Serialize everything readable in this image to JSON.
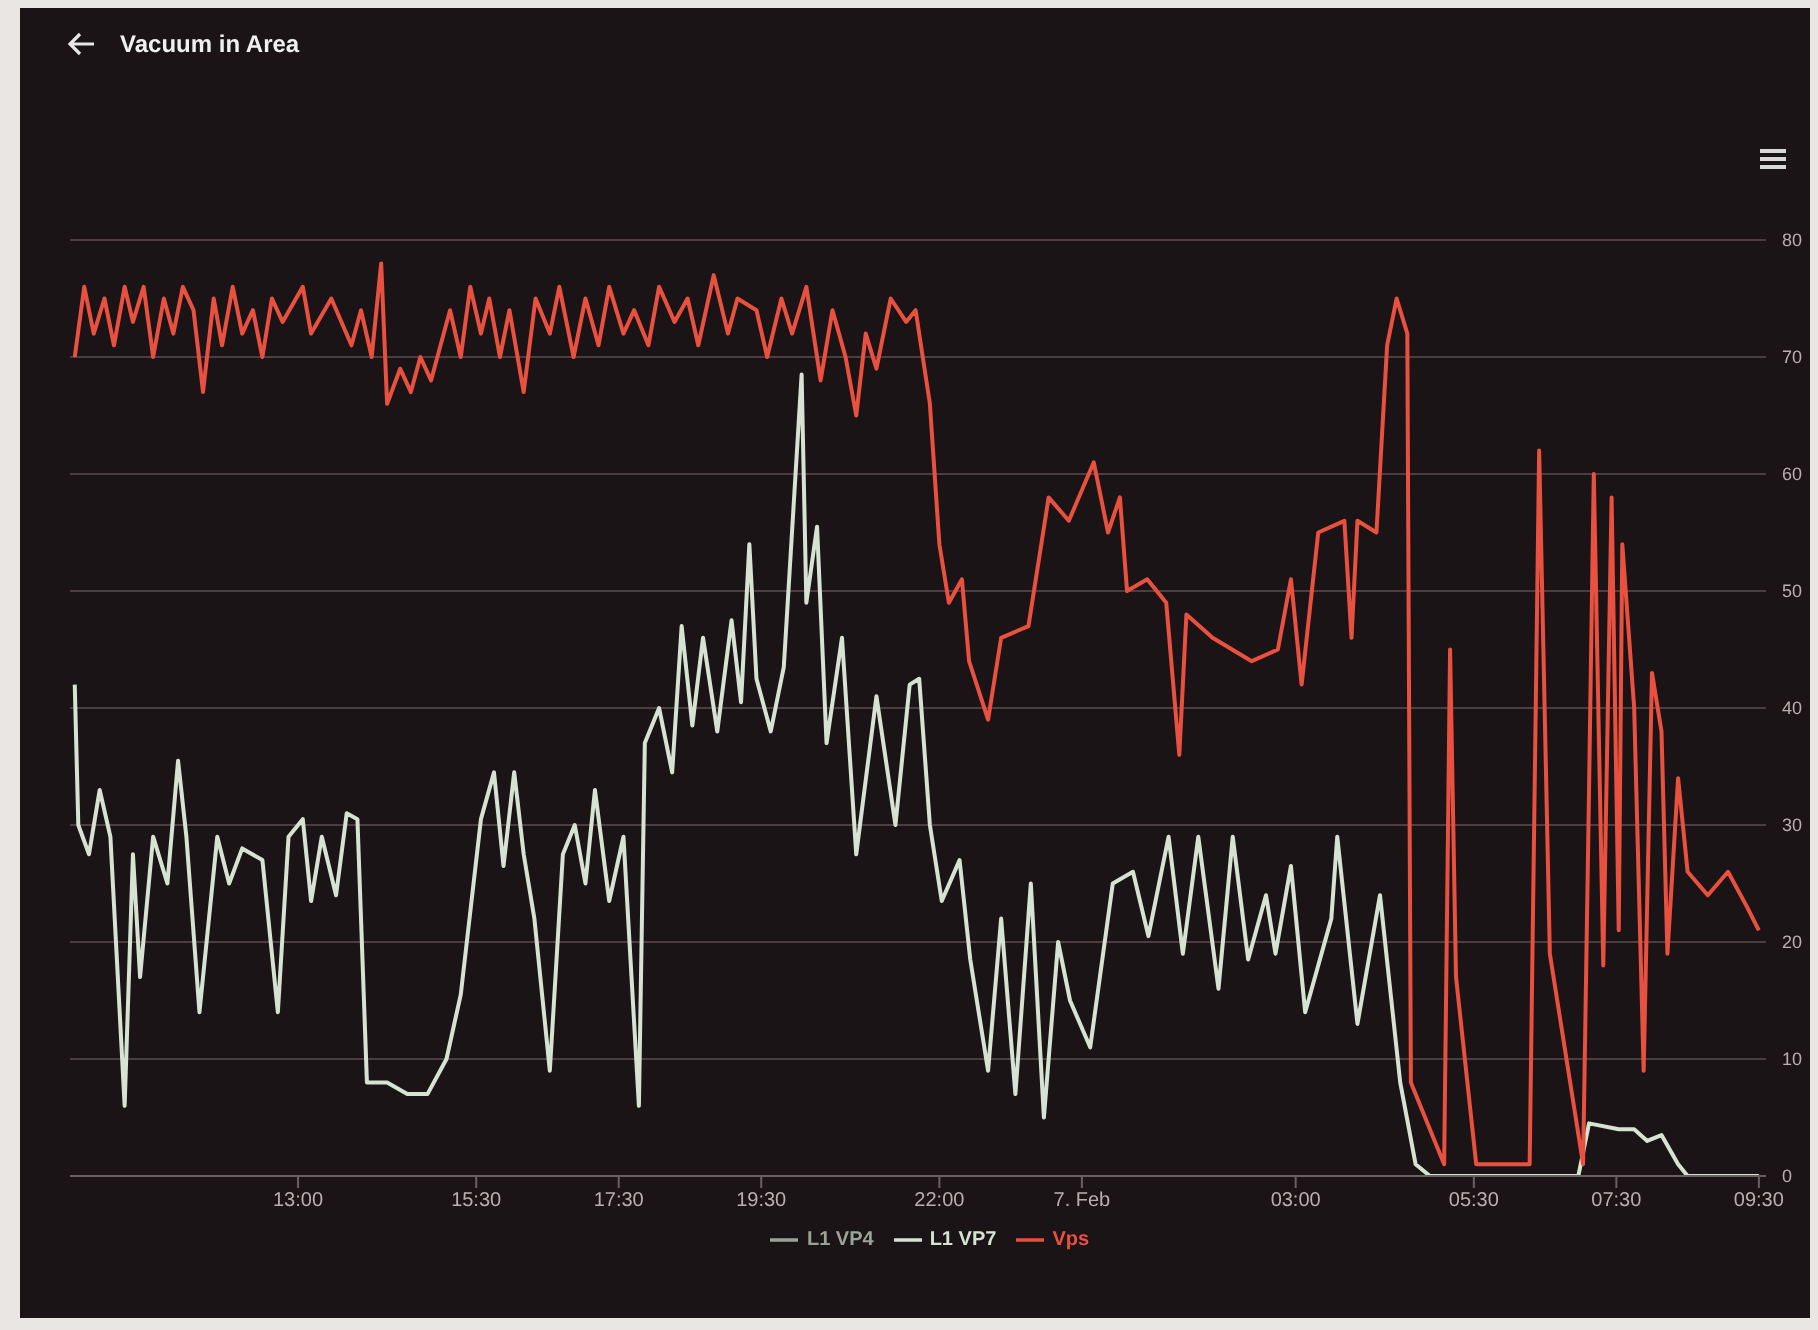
{
  "chart_data": {
    "type": "line",
    "title": "Vacuum in Area",
    "xlim": [
      "--02-06T09:48",
      "--02-07T09:36"
    ],
    "xticks": [
      {
        "value": "--02-06T13:00",
        "label": "13:00"
      },
      {
        "value": "--02-06T15:30",
        "label": "15:30"
      },
      {
        "value": "--02-06T17:30",
        "label": "17:30"
      },
      {
        "value": "--02-06T19:30",
        "label": "19:30"
      },
      {
        "value": "--02-06T22:00",
        "label": "22:00"
      },
      {
        "value": "--02-07T00:00",
        "label": "7. Feb"
      },
      {
        "value": "--02-07T03:00",
        "label": "03:00"
      },
      {
        "value": "--02-07T05:30",
        "label": "05:30"
      },
      {
        "value": "--02-07T07:30",
        "label": "07:30"
      },
      {
        "value": "--02-07T09:30",
        "label": "09:30"
      }
    ],
    "ylim": [
      0,
      80
    ],
    "yticks": [
      0,
      10,
      20,
      30,
      40,
      50,
      60,
      70,
      80
    ],
    "grid": "y",
    "legend": "bottom",
    "series": [
      {
        "name": "L1 VP4",
        "color": "#9aa39a"
      },
      {
        "name": "L1 VP7",
        "color": "#d6e3d3",
        "x": [
          "--02-06T09:52",
          "--02-06T09:55",
          "--02-06T10:04",
          "--02-06T10:13",
          "--02-06T10:22",
          "--02-06T10:34",
          "--02-06T10:41",
          "--02-06T10:47",
          "--02-06T10:58",
          "--02-06T11:10",
          "--02-06T11:19",
          "--02-06T11:26",
          "--02-06T11:37",
          "--02-06T11:52",
          "--02-06T12:02",
          "--02-06T12:13",
          "--02-06T12:30",
          "--02-06T12:43",
          "--02-06T12:52",
          "--02-06T13:04",
          "--02-06T13:11",
          "--02-06T13:20",
          "--02-06T13:32",
          "--02-06T13:41",
          "--02-06T13:50",
          "--02-06T13:58",
          "--02-06T14:15",
          "--02-06T14:32",
          "--02-06T14:49",
          "--02-06T15:05",
          "--02-06T15:17",
          "--02-06T15:34",
          "--02-06T15:45",
          "--02-06T15:53",
          "--02-06T16:02",
          "--02-06T16:10",
          "--02-06T16:19",
          "--02-06T16:32",
          "--02-06T16:43",
          "--02-06T16:53",
          "--02-06T17:02",
          "--02-06T17:10",
          "--02-06T17:22",
          "--02-06T17:34",
          "--02-06T17:47",
          "--02-06T17:52",
          "--02-06T18:04",
          "--02-06T18:15",
          "--02-06T18:23",
          "--02-06T18:32",
          "--02-06T18:41",
          "--02-06T18:53",
          "--02-06T19:05",
          "--02-06T19:13",
          "--02-06T19:20",
          "--02-06T19:26",
          "--02-06T19:38",
          "--02-06T19:49",
          "--02-06T20:04",
          "--02-06T20:08",
          "--02-06T20:17",
          "--02-06T20:25",
          "--02-06T20:38",
          "--02-06T20:50",
          "--02-06T21:07",
          "--02-06T21:23",
          "--02-06T21:35",
          "--02-06T21:43",
          "--02-06T21:52",
          "--02-06T22:02",
          "--02-06T22:17",
          "--02-06T22:26",
          "--02-06T22:41",
          "--02-06T22:52",
          "--02-06T23:04",
          "--02-06T23:17",
          "--02-06T23:28",
          "--02-06T23:40",
          "--02-06T23:50",
          "--02-07T00:07",
          "--02-07T00:26",
          "--02-07T00:43",
          "--02-07T00:56",
          "--02-07T01:13",
          "--02-07T01:25",
          "--02-07T01:38",
          "--02-07T01:55",
          "--02-07T02:07",
          "--02-07T02:20",
          "--02-07T02:35",
          "--02-07T02:43",
          "--02-07T02:56",
          "--02-07T03:08",
          "--02-07T03:30",
          "--02-07T03:35",
          "--02-07T03:52",
          "--02-07T04:11",
          "--02-07T04:28",
          "--02-07T04:41",
          "--02-07T04:53",
          "--02-07T06:58",
          "--02-07T07:07",
          "--02-07T07:32",
          "--02-07T07:45",
          "--02-07T07:56",
          "--02-07T08:08",
          "--02-07T08:22",
          "--02-07T08:30",
          "--02-07T09:30"
        ],
        "values": [
          42,
          30,
          27.5,
          33,
          29,
          6,
          27.5,
          17,
          29,
          25,
          35.5,
          29,
          14,
          29,
          25,
          28,
          27,
          14,
          29,
          30.5,
          23.5,
          29,
          24,
          31,
          30.5,
          8,
          8,
          7,
          7,
          10,
          15.5,
          30.5,
          34.5,
          26.5,
          34.5,
          27.5,
          22,
          9,
          27.5,
          30,
          25,
          33,
          23.5,
          29,
          6,
          37,
          40,
          34.5,
          47,
          38.5,
          46,
          38,
          47.5,
          40.5,
          54,
          42.5,
          38,
          43.5,
          68.5,
          49,
          55.5,
          37,
          46,
          27.5,
          41,
          30,
          42,
          42.5,
          30,
          23.5,
          27,
          18.5,
          9,
          22,
          7,
          25,
          5,
          20,
          15,
          11,
          25,
          26,
          20.5,
          29,
          19,
          29,
          16,
          29,
          18.5,
          24,
          19,
          26.5,
          14,
          22,
          29,
          13,
          24,
          8,
          1,
          0,
          0,
          4.5,
          4,
          4,
          3,
          3.5,
          1,
          0,
          0
        ]
      },
      {
        "name": "Vps",
        "color": "#e8513f",
        "x": [
          "--02-06T09:52",
          "--02-06T10:00",
          "--02-06T10:08",
          "--02-06T10:17",
          "--02-06T10:25",
          "--02-06T10:34",
          "--02-06T10:41",
          "--02-06T10:50",
          "--02-06T10:58",
          "--02-06T11:07",
          "--02-06T11:15",
          "--02-06T11:23",
          "--02-06T11:32",
          "--02-06T11:40",
          "--02-06T11:49",
          "--02-06T11:56",
          "--02-06T12:05",
          "--02-06T12:13",
          "--02-06T12:22",
          "--02-06T12:30",
          "--02-06T12:38",
          "--02-06T12:47",
          "--02-06T13:04",
          "--02-06T13:11",
          "--02-06T13:28",
          "--02-06T13:45",
          "--02-06T13:53",
          "--02-06T14:02",
          "--02-06T14:10",
          "--02-06T14:15",
          "--02-06T14:26",
          "--02-06T14:35",
          "--02-06T14:43",
          "--02-06T14:52",
          "--02-06T15:00",
          "--02-06T15:08",
          "--02-06T15:17",
          "--02-06T15:25",
          "--02-06T15:34",
          "--02-06T15:41",
          "--02-06T15:50",
          "--02-06T15:58",
          "--02-06T16:10",
          "--02-06T16:20",
          "--02-06T16:32",
          "--02-06T16:40",
          "--02-06T16:52",
          "--02-06T17:02",
          "--02-06T17:13",
          "--02-06T17:22",
          "--02-06T17:34",
          "--02-06T17:43",
          "--02-06T17:55",
          "--02-06T18:04",
          "--02-06T18:17",
          "--02-06T18:28",
          "--02-06T18:37",
          "--02-06T18:50",
          "--02-06T19:02",
          "--02-06T19:10",
          "--02-06T19:26",
          "--02-06T19:35",
          "--02-06T19:47",
          "--02-06T19:56",
          "--02-06T20:08",
          "--02-06T20:20",
          "--02-06T20:30",
          "--02-06T20:41",
          "--02-06T20:50",
          "--02-06T20:58",
          "--02-06T21:07",
          "--02-06T21:19",
          "--02-06T21:32",
          "--02-06T21:40",
          "--02-06T21:52",
          "--02-06T22:00",
          "--02-06T22:08",
          "--02-06T22:19",
          "--02-06T22:25",
          "--02-06T22:41",
          "--02-06T22:52",
          "--02-06T23:15",
          "--02-06T23:32",
          "--02-06T23:49",
          "--02-07T00:10",
          "--02-07T00:22",
          "--02-07T00:32",
          "--02-07T00:38",
          "--02-07T00:55",
          "--02-07T01:11",
          "--02-07T01:22",
          "--02-07T01:28",
          "--02-07T01:50",
          "--02-07T02:23",
          "--02-07T02:45",
          "--02-07T02:56",
          "--02-07T03:05",
          "--02-07T03:19",
          "--02-07T03:41",
          "--02-07T03:47",
          "--02-07T03:52",
          "--02-07T04:08",
          "--02-07T04:17",
          "--02-07T04:25",
          "--02-07T04:34",
          "--02-07T04:37",
          "--02-07T04:53",
          "--02-07T05:05",
          "--02-07T05:10",
          "--02-07T05:15",
          "--02-07T05:32",
          "--02-07T06:17",
          "--02-07T06:25",
          "--02-07T06:34",
          "--02-07T07:02",
          "--02-07T07:07",
          "--02-07T07:11",
          "--02-07T07:19",
          "--02-07T07:26",
          "--02-07T07:32",
          "--02-07T07:35",
          "--02-07T07:45",
          "--02-07T07:53",
          "--02-07T08:00",
          "--02-07T08:08",
          "--02-07T08:13",
          "--02-07T08:22",
          "--02-07T08:30",
          "--02-07T08:47",
          "--02-07T09:04",
          "--02-07T09:20",
          "--02-07T09:30"
        ],
        "values": [
          70,
          76,
          72,
          75,
          71,
          76,
          73,
          76,
          70,
          75,
          72,
          76,
          74,
          67,
          75,
          71,
          76,
          72,
          74,
          70,
          75,
          73,
          76,
          72,
          75,
          71,
          74,
          70,
          78,
          66,
          69,
          67,
          70,
          68,
          71,
          74,
          70,
          76,
          72,
          75,
          70,
          74,
          67,
          75,
          72,
          76,
          70,
          75,
          71,
          76,
          72,
          74,
          71,
          76,
          73,
          75,
          71,
          77,
          72,
          75,
          74,
          70,
          75,
          72,
          76,
          68,
          74,
          70,
          65,
          72,
          69,
          75,
          73,
          74,
          66,
          54,
          49,
          51,
          44,
          39,
          46,
          47,
          58,
          56,
          61,
          55,
          58,
          50,
          51,
          49,
          36,
          48,
          46,
          44,
          45,
          51,
          42,
          55,
          56,
          46,
          56,
          55,
          71,
          75,
          72,
          8,
          4,
          1,
          45,
          17,
          1,
          1,
          62,
          19,
          1,
          33,
          60,
          18,
          58,
          21,
          54,
          40,
          9,
          43,
          38,
          19,
          34,
          26,
          24,
          26,
          23,
          21
        ]
      }
    ]
  }
}
